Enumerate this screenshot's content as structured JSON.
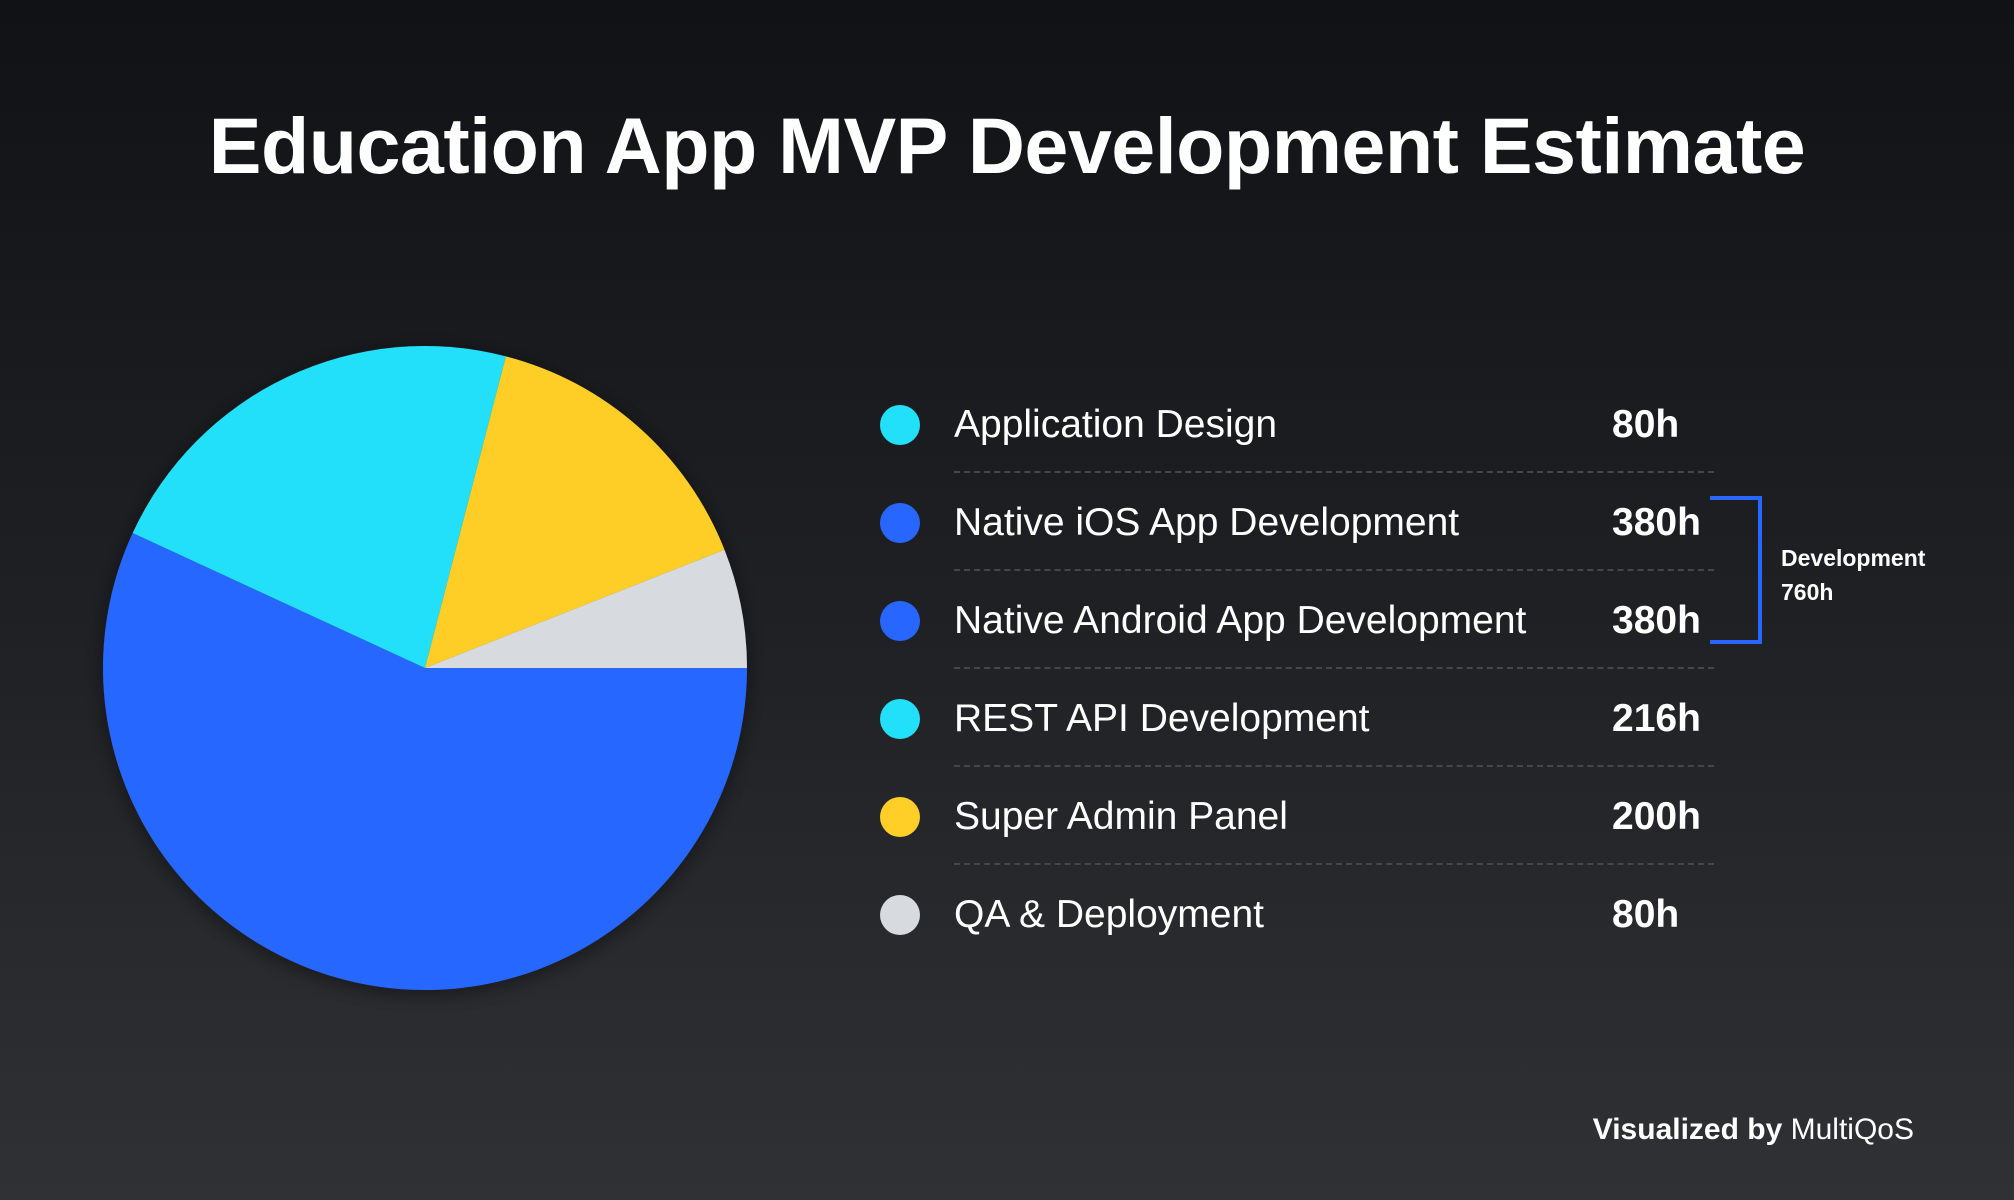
{
  "title": "Education App MVP Development Estimate",
  "chart_data": {
    "type": "pie",
    "title": "Education App MVP Development Estimate",
    "unit": "h",
    "categories": [
      "Application Design",
      "Native iOS App Development",
      "Native Android App Development",
      "REST API Development",
      "Super Admin Panel",
      "QA & Deployment"
    ],
    "values": [
      80,
      380,
      380,
      216,
      200,
      80
    ],
    "value_labels": [
      "80h",
      "380h",
      "380h",
      "216h",
      "200h",
      "80h"
    ],
    "colors": [
      "#22e0fa",
      "#2867ff",
      "#2867ff",
      "#22e0fa",
      "#ffce27",
      "#d7dade"
    ],
    "pie_slices": [
      {
        "label": "Native iOS & Android App Development",
        "value": 760,
        "color": "#2867ff"
      },
      {
        "label": "Application Design & REST API Development",
        "value": 296,
        "color": "#22e0fa"
      },
      {
        "label": "Super Admin Panel",
        "value": 200,
        "color": "#ffce27"
      },
      {
        "label": "QA & Deployment",
        "value": 80,
        "color": "#d7dade"
      }
    ],
    "group_annotation": {
      "label": "Development",
      "value_label": "760h",
      "members": [
        "Native iOS App Development",
        "Native Android App Development"
      ],
      "color": "#2867ff"
    },
    "legend_placement": "right",
    "grid": false
  },
  "credit": {
    "prefix": "Visualized by",
    "brand": "MultiQoS"
  }
}
